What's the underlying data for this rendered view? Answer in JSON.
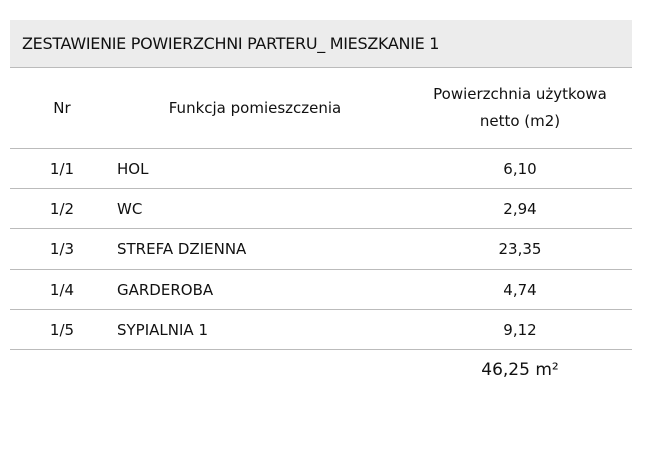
{
  "title": "ZESTAWIENIE POWIERZCHNI PARTERU_ MIESZKANIE 1",
  "table": {
    "header": [
      "Nr",
      "Funkcja pomieszczenia",
      "Powierzchnia użytkowa netto (m2)"
    ],
    "rows": [
      [
        "1/1",
        "HOL",
        "6,10"
      ],
      [
        "1/2",
        "WC",
        "2,94"
      ],
      [
        "1/3",
        "STREFA DZIENNA",
        "23,35"
      ],
      [
        "1/4",
        "GARDEROBA",
        "4,74"
      ],
      [
        "1/5",
        "SYPIALNIA 1",
        "9,12"
      ]
    ],
    "total": "46,25 m²"
  }
}
